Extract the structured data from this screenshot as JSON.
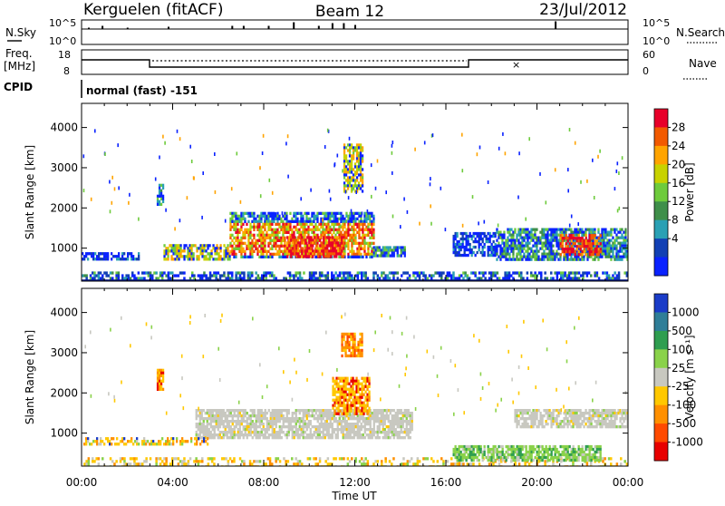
{
  "header": {
    "station": "Kerguelen (fitACF)",
    "beam": "Beam 12",
    "date": "23/Jul/2012"
  },
  "strips": {
    "nsky_label": "N.Sky",
    "nsearch_label": "N.Search",
    "nsky_ticks": [
      "10^5",
      "10^0"
    ],
    "nsearch_ticks": [
      "10^5",
      "10^0"
    ],
    "freq_label_line1": "Freq.",
    "freq_label_line2": "[MHz]",
    "freq_ticks": [
      "18",
      "8"
    ],
    "nave_label": "Nave",
    "nave_ticks": [
      "60",
      "0"
    ],
    "cpid_label": "CPID",
    "cpid_value": "normal (fast) -151"
  },
  "chart_data": [
    {
      "type": "heatmap",
      "title": "",
      "ylabel": "Slant Range [km]",
      "xlabel": "",
      "ylim": [
        180,
        4600
      ],
      "xlim_hours": [
        0,
        24
      ],
      "y_ticks": [
        "4000",
        "3000",
        "2000",
        "1000"
      ],
      "colorbar": {
        "label": "Power [dB]",
        "ticks": [
          "28",
          "24",
          "20",
          "16",
          "12",
          "8",
          "4"
        ],
        "colors": [
          "#e8002a",
          "#f25a00",
          "#ffa400",
          "#c8d200",
          "#6ecb3c",
          "#3f8f4a",
          "#2aa0b4",
          "#1240b4",
          "#0a22ff"
        ]
      },
      "echo_regions": [
        {
          "t_start": 0.0,
          "t_end": 2.5,
          "range_min": 720,
          "range_max": 900,
          "value": "8"
        },
        {
          "t_start": 3.3,
          "t_end": 3.6,
          "range_min": 2100,
          "range_max": 2600,
          "value": "12"
        },
        {
          "t_start": 3.6,
          "t_end": 6.5,
          "range_min": 750,
          "range_max": 1100,
          "value": "16"
        },
        {
          "t_start": 6.5,
          "t_end": 12.8,
          "range_min": 750,
          "range_max": 1900,
          "value": "24"
        },
        {
          "t_start": 9.0,
          "t_end": 11.5,
          "range_min": 800,
          "range_max": 1300,
          "value": "28"
        },
        {
          "t_start": 11.5,
          "t_end": 12.3,
          "range_min": 2400,
          "range_max": 3600,
          "value": "16"
        },
        {
          "t_start": 12.8,
          "t_end": 14.2,
          "range_min": 780,
          "range_max": 1050,
          "value": "12"
        },
        {
          "t_start": 16.3,
          "t_end": 18.2,
          "range_min": 800,
          "range_max": 1400,
          "value": "8"
        },
        {
          "t_start": 18.2,
          "t_end": 24.0,
          "range_min": 700,
          "range_max": 1500,
          "value": "12"
        },
        {
          "t_start": 21.0,
          "t_end": 22.8,
          "range_min": 850,
          "range_max": 1350,
          "value": "28"
        }
      ]
    },
    {
      "type": "heatmap",
      "title": "",
      "ylabel": "Slant Range [km]",
      "xlabel": "Time UT",
      "ylim": [
        180,
        4600
      ],
      "xlim_hours": [
        0,
        24
      ],
      "y_ticks": [
        "4000",
        "3000",
        "2000",
        "1000"
      ],
      "x_ticks": [
        "00:00",
        "04:00",
        "08:00",
        "12:00",
        "16:00",
        "20:00",
        "00:00"
      ],
      "colorbar": {
        "label": "Velocity [m s⁻¹]",
        "ticks": [
          "1000",
          "500",
          "100",
          "25",
          "-25",
          "-100",
          "-500",
          "-1000"
        ],
        "colors": [
          "#1a3cc8",
          "#2f7e98",
          "#2f9e50",
          "#8ad24a",
          "#c8c8c0",
          "#ffc800",
          "#ff9000",
          "#ff4a00",
          "#e80000"
        ]
      },
      "ground_scatter_color": "#c8c8c0",
      "echo_regions": [
        {
          "t_start": 3.3,
          "t_end": 3.6,
          "range_min": 2100,
          "range_max": 2600,
          "value": "-100"
        },
        {
          "t_start": 5.0,
          "t_end": 14.5,
          "range_min": 900,
          "range_max": 1600,
          "value": "-25 to 25"
        },
        {
          "t_start": 11.4,
          "t_end": 12.3,
          "range_min": 2900,
          "range_max": 3500,
          "value": "-500"
        },
        {
          "t_start": 11.0,
          "t_end": 12.6,
          "range_min": 1500,
          "range_max": 2400,
          "value": "-100"
        },
        {
          "t_start": 16.3,
          "t_end": 22.8,
          "range_min": 300,
          "range_max": 700,
          "value": "100"
        },
        {
          "t_start": 19.0,
          "t_end": 24.0,
          "range_min": 1150,
          "range_max": 1600,
          "value": "-25 to 25"
        }
      ]
    }
  ]
}
